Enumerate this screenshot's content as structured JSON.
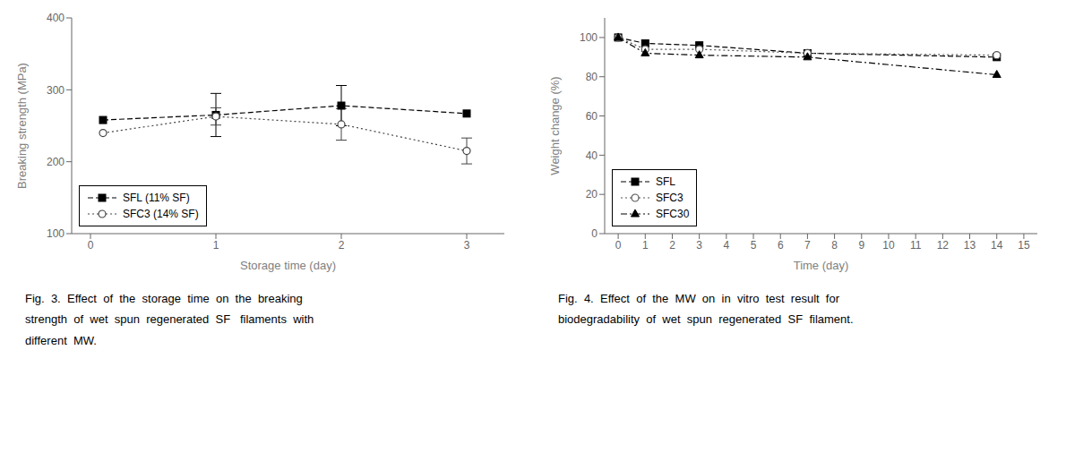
{
  "chart_data": [
    {
      "type": "line",
      "x_label": "Storage time (day)",
      "y_label": "Breaking strength (MPa)",
      "xlim": [
        -0.15,
        3.3
      ],
      "xticks": [
        0,
        1,
        2,
        3
      ],
      "ylim": [
        100,
        400
      ],
      "yticks": [
        100,
        200,
        300,
        400
      ],
      "grid": false,
      "legend": "lower left",
      "x": [
        0.1,
        1,
        2,
        3
      ],
      "series": [
        {
          "name": "SFL (11% SF)",
          "color": "#000000",
          "marker": "square",
          "line_style": "dashed",
          "values": [
            258,
            265,
            278,
            267
          ],
          "errors": [
            0,
            30,
            28,
            0
          ]
        },
        {
          "name": "SFC3 (14% SF)",
          "color": "#444444",
          "marker": "circle",
          "line_style": "dotted",
          "values": [
            240,
            263,
            252,
            215
          ],
          "errors": [
            0,
            12,
            22,
            18
          ]
        }
      ],
      "annotations": [
        "Fig.  3.  Effect  of  the  storage  time  on  the  breaking",
        "strength  of  wet  spun  regenerated  SF   filaments  with",
        "different  MW."
      ]
    },
    {
      "type": "line",
      "x_label": "Time (day)",
      "y_label": "Weight change (%)",
      "xlim": [
        -0.5,
        15.5
      ],
      "xticks": [
        0,
        1,
        2,
        3,
        4,
        5,
        6,
        7,
        8,
        9,
        10,
        11,
        12,
        13,
        14,
        15
      ],
      "ylim": [
        0,
        110
      ],
      "yticks": [
        0,
        20,
        40,
        60,
        80,
        100
      ],
      "grid": false,
      "legend": "lower left",
      "x": [
        0,
        1,
        3,
        7,
        14
      ],
      "series": [
        {
          "name": "SFL",
          "color": "#000000",
          "marker": "square",
          "line_style": "dashed",
          "values": [
            100,
            97,
            96,
            92,
            90
          ]
        },
        {
          "name": "SFC3",
          "color": "#555555",
          "marker": "circle",
          "line_style": "dotted",
          "values": [
            100,
            94,
            94,
            92,
            91
          ]
        },
        {
          "name": "SFC30",
          "color": "#000000",
          "marker": "triangle",
          "line_style": "dashdot",
          "values": [
            100,
            92,
            91,
            90,
            81
          ]
        }
      ],
      "annotations": [
        "Fig.  4.  Effect  of  the  MW  on  in  vitro  test  result  for",
        "biodegradability  of  wet  spun  regenerated  SF  filament."
      ]
    }
  ]
}
